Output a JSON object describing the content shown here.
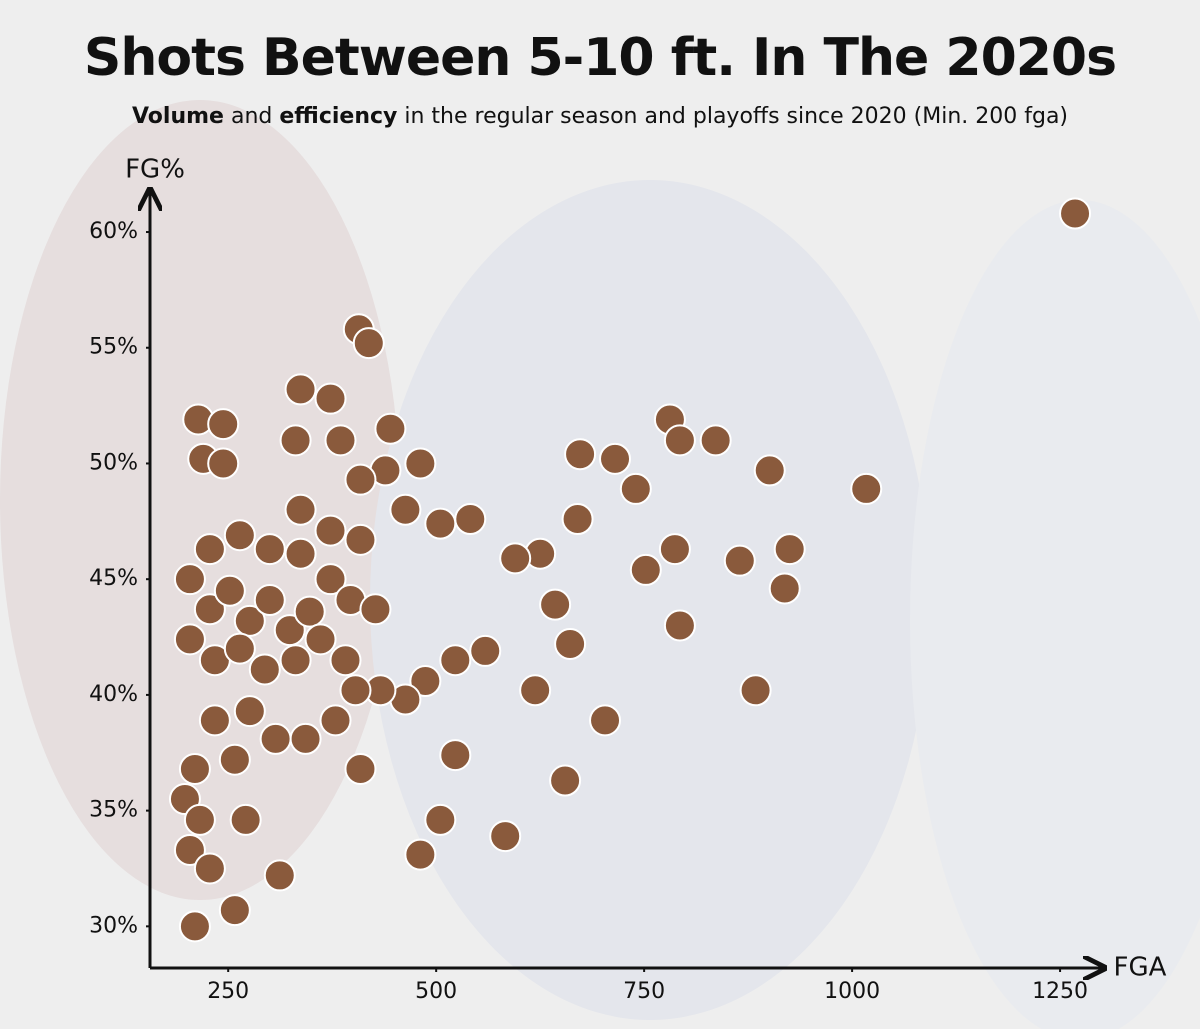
{
  "chart_data": {
    "type": "scatter",
    "title": "Shots Between 5-10 ft. In The 2020s",
    "subtitle_parts": [
      "Volume",
      "and",
      "efficiency",
      "in the regular season and playoffs since 2020 (Min. 200 fga)"
    ],
    "xlabel": "FGA",
    "ylabel": "FG%",
    "xlim": [
      156,
      1298
    ],
    "ylim": [
      28.2,
      61.6
    ],
    "xticks": [
      250,
      500,
      750,
      1000,
      1250
    ],
    "yticks": [
      {
        "value": 30,
        "label": "30%"
      },
      {
        "value": 35,
        "label": "35%"
      },
      {
        "value": 40,
        "label": "40%"
      },
      {
        "value": 45,
        "label": "45%"
      },
      {
        "value": 50,
        "label": "50%"
      },
      {
        "value": 55,
        "label": "55%"
      },
      {
        "value": 60,
        "label": "60%"
      }
    ],
    "color": "#8a5a3c",
    "x": [
      1268,
      1017,
      901,
      715,
      673,
      781,
      793,
      836,
      740,
      670,
      541,
      787,
      865,
      925,
      752,
      919,
      793,
      884,
      703,
      655,
      583,
      481,
      505,
      523,
      409,
      407,
      419,
      337,
      373,
      214,
      244,
      220,
      244,
      331,
      385,
      445,
      481,
      439,
      409,
      463,
      505,
      625,
      595,
      643,
      661,
      619,
      559,
      523,
      487,
      463,
      433,
      403,
      379,
      343,
      307,
      258,
      210,
      198,
      216,
      271,
      204,
      228,
      312,
      258,
      210,
      204,
      228,
      252,
      276,
      300,
      324,
      348,
      373,
      397,
      427,
      204,
      234,
      264,
      294,
      331,
      361,
      391,
      228,
      264,
      300,
      337,
      373,
      409,
      276,
      234,
      337
    ],
    "values": [
      60.8,
      48.9,
      49.7,
      50.2,
      50.4,
      51.9,
      51.0,
      51.0,
      48.9,
      47.6,
      47.6,
      46.3,
      45.8,
      46.3,
      45.4,
      44.6,
      43.0,
      40.2,
      38.9,
      36.3,
      33.9,
      33.1,
      34.6,
      37.4,
      36.8,
      55.8,
      55.2,
      53.2,
      52.8,
      51.9,
      51.7,
      50.2,
      50.0,
      51.0,
      51.0,
      51.5,
      50.0,
      49.7,
      49.3,
      48.0,
      47.4,
      46.1,
      45.9,
      43.9,
      42.2,
      40.2,
      41.9,
      41.5,
      40.6,
      39.8,
      40.2,
      40.2,
      38.9,
      38.1,
      38.1,
      37.2,
      36.8,
      35.5,
      34.6,
      34.6,
      33.3,
      32.5,
      32.2,
      30.7,
      30.0,
      45.0,
      43.7,
      44.5,
      43.2,
      44.1,
      42.8,
      43.6,
      45.0,
      44.1,
      43.7,
      42.4,
      41.5,
      42.0,
      41.1,
      41.5,
      42.4,
      41.5,
      46.3,
      46.9,
      46.3,
      46.1,
      47.1,
      46.7,
      39.3,
      38.9,
      48.0
    ]
  }
}
